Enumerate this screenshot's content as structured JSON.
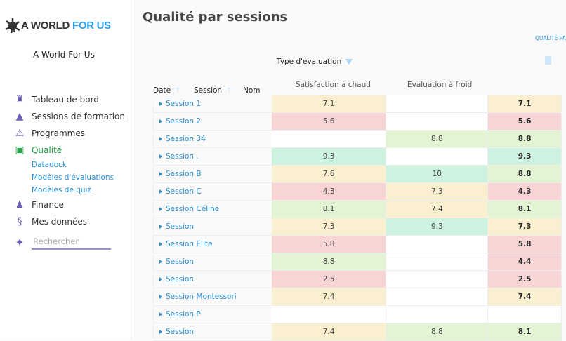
{
  "sidebar": {
    "logo": {
      "part1": "A WORLD",
      "part2": "FOR US"
    },
    "org": "A World For Us",
    "items": [
      {
        "label": "Tableau de bord",
        "icon": "lighthouse-icon"
      },
      {
        "label": "Sessions de formation",
        "icon": "rocket-icon"
      },
      {
        "label": "Programmes",
        "icon": "sextant-icon"
      },
      {
        "label": "Qualité",
        "icon": "quality-icon",
        "active": true
      },
      {
        "label": "Finance",
        "icon": "banker-icon"
      },
      {
        "label": "Mes données",
        "icon": "dna-icon"
      }
    ],
    "subitems": [
      "Datadock",
      "Modèles d'évaluations",
      "Modèles de quiz"
    ],
    "search_placeholder": "Rechercher"
  },
  "header": {
    "title": "Qualité par sessions",
    "breadcrumb": "QUALITÉ PA"
  },
  "table": {
    "group_label": "Type d'évaluation",
    "columns": {
      "date": "Date",
      "session": "Session",
      "nom": "Nom",
      "col1": "Satisfaction à chaud",
      "col2": "Evaluation à froid"
    },
    "rows": [
      {
        "name": "Session 1",
        "v1": "7.1",
        "v2": "",
        "v3": "7.1",
        "k1": "y",
        "k2": "w",
        "k3": "y"
      },
      {
        "name": "Session 2",
        "v1": "5.6",
        "v2": "",
        "v3": "5.6",
        "k1": "r",
        "k2": "w",
        "k3": "r"
      },
      {
        "name": "Session 34",
        "v1": "",
        "v2": "8.8",
        "v3": "8.8",
        "k1": "w",
        "k2": "g",
        "k3": "g"
      },
      {
        "name": "Session .",
        "v1": "9.3",
        "v2": "",
        "v3": "9.3",
        "k1": "m",
        "k2": "w",
        "k3": "m"
      },
      {
        "name": "Session B",
        "v1": "7.6",
        "v2": "10",
        "v3": "8.8",
        "k1": "y",
        "k2": "m",
        "k3": "g"
      },
      {
        "name": "Session C",
        "v1": "4.3",
        "v2": "7.3",
        "v3": "4.3",
        "k1": "r",
        "k2": "y",
        "k3": "r"
      },
      {
        "name": "Session Céline",
        "v1": "8.1",
        "v2": "7.4",
        "v3": "8.1",
        "k1": "g",
        "k2": "y",
        "k3": "g"
      },
      {
        "name": "Session",
        "v1": "7.3",
        "v2": "9.3",
        "v3": "7.3",
        "k1": "y",
        "k2": "m",
        "k3": "y"
      },
      {
        "name": "Session Elite",
        "v1": "5.8",
        "v2": "",
        "v3": "5.8",
        "k1": "r",
        "k2": "w",
        "k3": "r"
      },
      {
        "name": "Session",
        "v1": "8.8",
        "v2": "",
        "v3": "4.4",
        "k1": "g",
        "k2": "w",
        "k3": "r"
      },
      {
        "name": "Session",
        "v1": "2.5",
        "v2": "",
        "v3": "2.5",
        "k1": "r",
        "k2": "w",
        "k3": "r"
      },
      {
        "name": "Session Montessori",
        "v1": "7.4",
        "v2": "",
        "v3": "7.4",
        "k1": "y",
        "k2": "w",
        "k3": "y"
      },
      {
        "name": "Session P",
        "v1": "",
        "v2": "",
        "v3": "",
        "k1": "w",
        "k2": "w",
        "k3": "w"
      },
      {
        "name": "Session",
        "v1": "7.4",
        "v2": "8.8",
        "v3": "8.1",
        "k1": "y",
        "k2": "g",
        "k3": "g"
      }
    ]
  },
  "colors": {
    "r": "#f8d4d5",
    "y": "#faefcf",
    "g": "#e2f4d3",
    "m": "#cef2e0",
    "w": "#ffffff",
    "accent": "#2b8fd6",
    "active": "#22a045"
  }
}
